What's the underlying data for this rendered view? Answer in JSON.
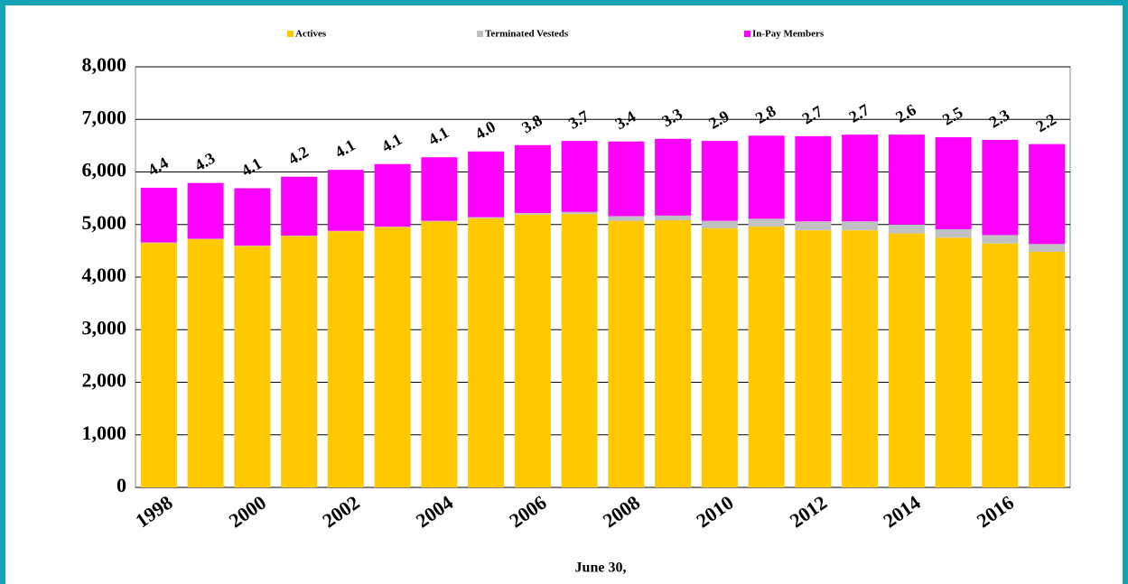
{
  "chart_data": {
    "type": "stacked_bar",
    "categories": [
      "1998",
      null,
      "2000",
      null,
      "2002",
      null,
      "2004",
      null,
      "2006",
      null,
      "2008",
      null,
      "2010",
      null,
      "2012",
      null,
      "2014",
      null,
      "2016",
      null
    ],
    "series": [
      {
        "name": "Actives",
        "color": "#ffc800",
        "values": [
          4650,
          4720,
          4590,
          4780,
          4870,
          4950,
          5060,
          5120,
          5190,
          5200,
          5070,
          5080,
          4930,
          4960,
          4890,
          4890,
          4830,
          4750,
          4640,
          4480
        ]
      },
      {
        "name": "Terminated Vesteds",
        "color": "#c0c0c0",
        "values": [
          10,
          10,
          10,
          10,
          10,
          10,
          10,
          20,
          30,
          40,
          90,
          90,
          140,
          150,
          170,
          170,
          170,
          160,
          160,
          150
        ]
      },
      {
        "name": "In-Pay Members",
        "color": "#ff00ff",
        "values": [
          1040,
          1060,
          1090,
          1120,
          1160,
          1190,
          1210,
          1250,
          1290,
          1350,
          1420,
          1460,
          1520,
          1580,
          1620,
          1650,
          1710,
          1750,
          1810,
          1900
        ]
      }
    ],
    "annotations": [
      "4.4",
      "4.3",
      "4.1",
      "4.2",
      "4.1",
      "4.1",
      "4.1",
      "4.0",
      "3.8",
      "3.7",
      "3.4",
      "3.3",
      "2.9",
      "2.8",
      "2.7",
      "2.7",
      "2.6",
      "2.5",
      "2.3",
      "2.2"
    ],
    "x_label": "June 30,",
    "ylim": [
      0,
      8000
    ],
    "yticks": [
      0,
      {
        "value": 1000,
        "label": "1,000"
      },
      {
        "value": 2000,
        "label": "2,000"
      },
      {
        "value": 3000,
        "label": "3,000"
      },
      {
        "value": 4000,
        "label": "4,000"
      },
      {
        "value": 5000,
        "label": "5,000"
      },
      {
        "value": 6000,
        "label": "6,000"
      },
      {
        "value": 7000,
        "label": "7,000"
      },
      {
        "value": 8000,
        "label": "8,000"
      }
    ],
    "grid": true
  }
}
